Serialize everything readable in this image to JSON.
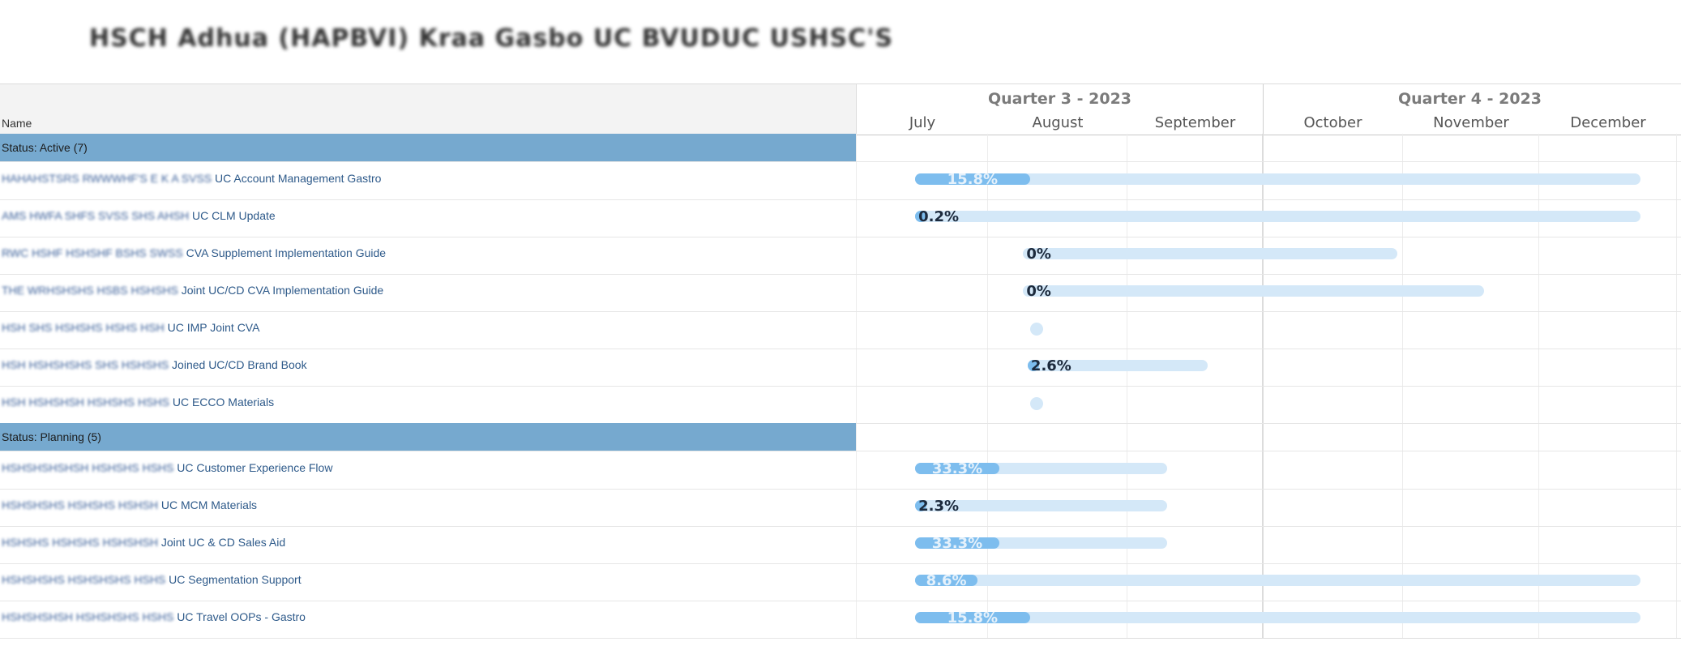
{
  "title": "HSCH Adhua (HAPBVI) Kraa Gasbo UC BVUDUC USHSC'S",
  "header": {
    "name_label": "Name",
    "quarters": [
      "Quarter 3 - 2023",
      "Quarter 4 - 2023"
    ],
    "months": [
      "July",
      "August",
      "September",
      "October",
      "November",
      "December"
    ]
  },
  "colors": {
    "group_band": "#76a9cf",
    "bar_track": "#d4e8f8",
    "bar_fill": "#7dbdee",
    "task_text": "#2e5a8a"
  },
  "groups": [
    {
      "label": "Status: Active (7)",
      "tasks": [
        {
          "prefix": "HAHAHSTSRS RWWWHF'S E K A SVSS",
          "label": "UC Account Management Gastro",
          "start": "2023-07-15",
          "end": "2023-12-24",
          "progress": "15.8%",
          "progress_value": 0.158
        },
        {
          "prefix": "AMS HWFA SHFS SVSS SHS AHSH",
          "label": "UC CLM Update",
          "start": "2023-07-15",
          "end": "2023-12-24",
          "progress": "0.2%",
          "progress_value": 0.002
        },
        {
          "prefix": "RWC HSHF HSHSHF BSHS SWSS",
          "label": "CVA Supplement Implementation Guide",
          "start": "2023-08-09",
          "end": "2023-10-31",
          "progress": "0%",
          "progress_value": 0
        },
        {
          "prefix": "THE WRHSHSHS HSBS HSHSHS",
          "label": "Joint UC/CD CVA Implementation Guide",
          "start": "2023-08-09",
          "end": "2023-11-19",
          "progress": "0%",
          "progress_value": 0
        },
        {
          "prefix": "HSH SHS HSHSHS HSHS HSH",
          "label": "UC IMP Joint CVA",
          "milestone": "2023-08-12"
        },
        {
          "prefix": "HSH HSHSHSHS SHS HSHSHS",
          "label": "Joined UC/CD Brand Book",
          "start": "2023-08-10",
          "end": "2023-09-19",
          "progress": "2.6%",
          "progress_value": 0.026
        },
        {
          "prefix": "HSH HSHSHSH HSHSHS HSHS",
          "label": "UC ECCO Materials",
          "milestone": "2023-08-12"
        }
      ]
    },
    {
      "label": "Status: Planning (5)",
      "tasks": [
        {
          "prefix": "HSHSHSHSHSH HSHSHS HSHS",
          "label": "UC Customer Experience Flow",
          "start": "2023-07-15",
          "end": "2023-09-10",
          "progress": "33.3%",
          "progress_value": 0.333
        },
        {
          "prefix": "HSHSHSHS HSHSHS HSHSH",
          "label": "UC MCM Materials",
          "start": "2023-07-15",
          "end": "2023-09-10",
          "progress": "2.3%",
          "progress_value": 0.023
        },
        {
          "prefix": "HSHSHS HSHSHS HSHSHSH",
          "label": "Joint UC & CD Sales Aid",
          "start": "2023-07-15",
          "end": "2023-09-10",
          "progress": "33.3%",
          "progress_value": 0.333
        },
        {
          "prefix": "HSHSHSHS HSHSHSHS HSHS",
          "label": "UC Segmentation Support",
          "start": "2023-07-15",
          "end": "2023-12-24",
          "progress": "8.6%",
          "progress_value": 0.086
        },
        {
          "prefix": "HSHSHSHSH HSHSHSHS HSHS",
          "label": "UC Travel OOPs - Gastro",
          "start": "2023-07-15",
          "end": "2023-12-24",
          "progress": "15.8%",
          "progress_value": 0.158
        }
      ]
    }
  ]
}
